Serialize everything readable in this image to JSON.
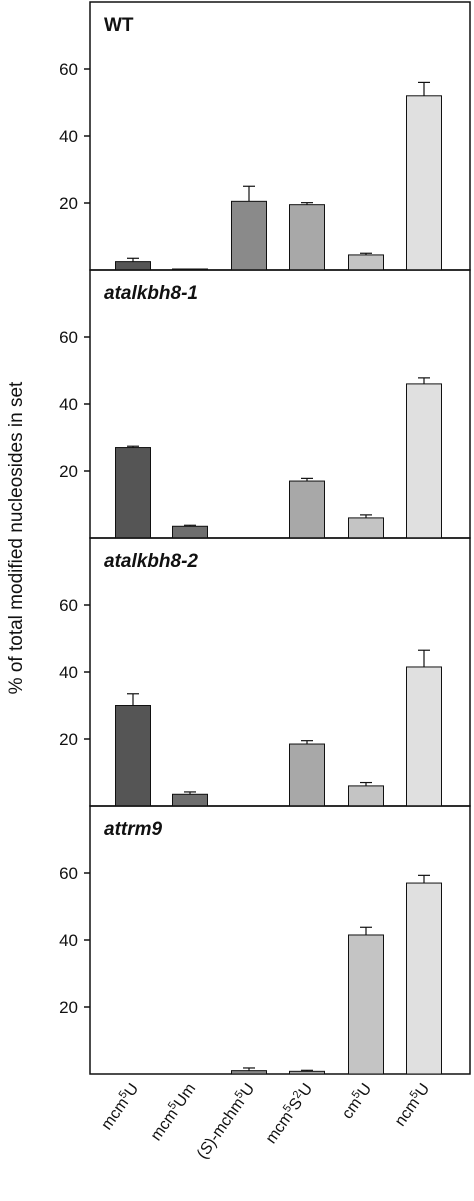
{
  "chart_data": {
    "type": "bar",
    "ylabel": "% of total modified nucleosides in set",
    "ylim": [
      0,
      80
    ],
    "yticks": [
      20,
      40,
      60
    ],
    "categories": [
      {
        "base": "mcm",
        "sup": "5",
        "tail": "U"
      },
      {
        "base": "mcm",
        "sup": "5",
        "tail": "Um"
      },
      {
        "pre": "(",
        "ital": "S",
        "base": ")-mchm",
        "sup": "5",
        "tail": "U"
      },
      {
        "base": "mcm",
        "sup": "5",
        "mid": "S",
        "sup2": "2",
        "tail": "U"
      },
      {
        "base": "cm",
        "sup": "5",
        "tail": "U"
      },
      {
        "base": "ncm",
        "sup": "5",
        "tail": "U"
      }
    ],
    "bar_colors": [
      "#555555",
      "#6e6e6e",
      "#8a8a8a",
      "#a8a8a8",
      "#c4c4c4",
      "#e0e0e0"
    ],
    "panels": [
      {
        "title": "WT",
        "italic": false,
        "values": [
          2.5,
          0.3,
          20.5,
          19.5,
          4.5,
          52
        ],
        "errors": [
          1.0,
          0,
          4.5,
          0.6,
          0.5,
          4.0
        ]
      },
      {
        "title": "atalkbh8-1",
        "italic": true,
        "values": [
          27,
          3.5,
          0,
          17,
          6,
          46
        ],
        "errors": [
          0.4,
          0.3,
          0,
          0.8,
          0.9,
          1.8
        ]
      },
      {
        "title": "atalkbh8-2",
        "italic": true,
        "values": [
          30,
          3.5,
          0,
          18.5,
          6,
          41.5
        ],
        "errors": [
          3.5,
          0.7,
          0,
          1.0,
          1.0,
          5.0
        ]
      },
      {
        "title": "attrm9",
        "italic": true,
        "values": [
          0,
          0,
          1,
          0.8,
          41.5,
          57
        ],
        "errors": [
          0,
          0,
          0.8,
          0.3,
          2.3,
          2.3
        ]
      }
    ]
  }
}
